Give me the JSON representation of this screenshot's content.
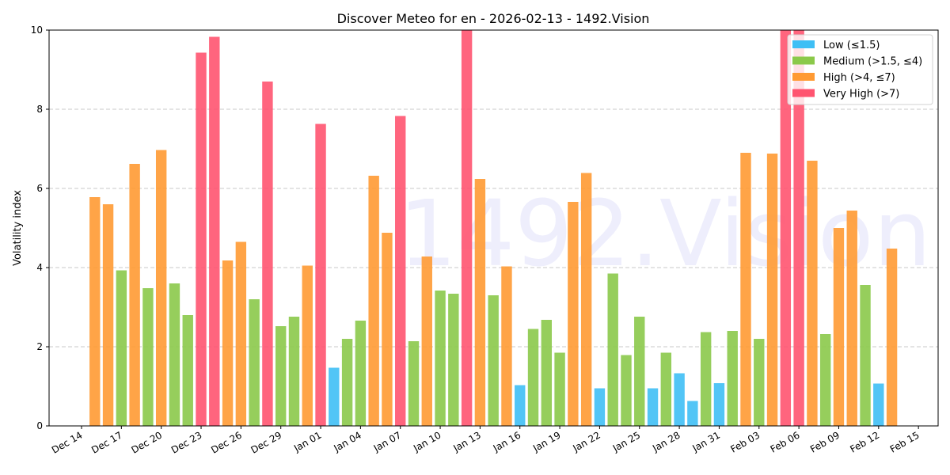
{
  "chart_data": {
    "type": "bar",
    "title": "Discover Meteo for en - 2026-02-13 - 1492.Vision",
    "xlabel": "",
    "ylabel": "Volatility index",
    "ylim": [
      0,
      10
    ],
    "yticks": [
      "0",
      "2",
      "4",
      "6",
      "8",
      "10"
    ],
    "xticks": [
      "Dec 14",
      "Dec 17",
      "Dec 20",
      "Dec 23",
      "Dec 26",
      "Dec 29",
      "Jan 01",
      "Jan 04",
      "Jan 07",
      "Jan 10",
      "Jan 13",
      "Jan 16",
      "Jan 19",
      "Jan 22",
      "Jan 25",
      "Jan 28",
      "Jan 31",
      "Feb 03",
      "Feb 06",
      "Feb 09",
      "Feb 12",
      "Feb 15"
    ],
    "grid": "horizontal dashed",
    "legend_placement": "top-right",
    "watermark": "1492.Vision",
    "legend": [
      {
        "label": "Low (≤1.5)",
        "color": "#3fbff5"
      },
      {
        "label": "Medium (>1.5, ≤4)",
        "color": "#8bc94a"
      },
      {
        "label": "High (>4, ≤7)",
        "color": "#ff9a33"
      },
      {
        "label": "Very High (>7)",
        "color": "#ff5470"
      }
    ],
    "categories": [
      "Dec 15",
      "Dec 16",
      "Dec 17",
      "Dec 18",
      "Dec 19",
      "Dec 20",
      "Dec 21",
      "Dec 22",
      "Dec 23",
      "Dec 24",
      "Dec 25",
      "Dec 26",
      "Dec 27",
      "Dec 28",
      "Dec 29",
      "Dec 30",
      "Dec 31",
      "Jan 01",
      "Jan 02",
      "Jan 03",
      "Jan 04",
      "Jan 05",
      "Jan 06",
      "Jan 07",
      "Jan 08",
      "Jan 09",
      "Jan 10",
      "Jan 11",
      "Jan 12",
      "Jan 13",
      "Jan 14",
      "Jan 15",
      "Jan 16",
      "Jan 17",
      "Jan 18",
      "Jan 19",
      "Jan 20",
      "Jan 21",
      "Jan 22",
      "Jan 23",
      "Jan 24",
      "Jan 25",
      "Jan 26",
      "Jan 27",
      "Jan 28",
      "Jan 29",
      "Jan 30",
      "Jan 31",
      "Feb 01",
      "Feb 02",
      "Feb 03",
      "Feb 04",
      "Feb 05",
      "Feb 06",
      "Feb 07",
      "Feb 08",
      "Feb 09",
      "Feb 10",
      "Feb 11",
      "Feb 12",
      "Feb 13"
    ],
    "values": [
      5.78,
      5.6,
      3.93,
      6.62,
      3.48,
      6.97,
      3.6,
      2.8,
      9.43,
      9.83,
      4.18,
      4.65,
      3.2,
      8.7,
      2.52,
      2.76,
      4.05,
      7.63,
      1.47,
      2.2,
      2.66,
      6.32,
      4.88,
      7.83,
      2.14,
      4.28,
      3.42,
      3.34,
      10.2,
      6.24,
      3.3,
      4.03,
      1.03,
      2.45,
      2.68,
      1.85,
      5.66,
      6.39,
      0.95,
      3.85,
      1.79,
      2.76,
      0.95,
      1.85,
      1.33,
      0.63,
      2.37,
      1.08,
      2.4,
      6.9,
      2.2,
      6.88,
      10.2,
      10.2,
      6.7,
      2.32,
      5.0,
      5.44,
      3.56,
      1.07,
      4.48
    ]
  }
}
